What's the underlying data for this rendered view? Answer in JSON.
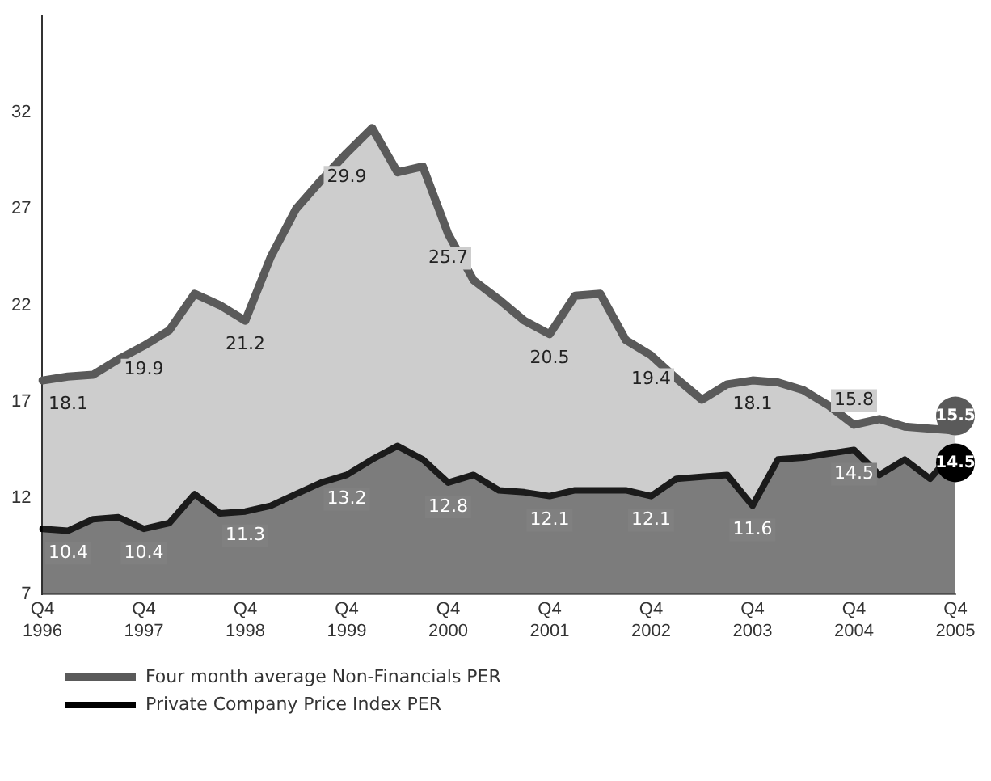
{
  "chart_data": {
    "type": "area",
    "legend": "bottom",
    "grid": false,
    "marker": "none",
    "line_style": "solid",
    "categories": [
      "Q4 1996",
      null,
      null,
      null,
      "Q4 1997",
      null,
      null,
      null,
      "Q4 1998",
      null,
      null,
      null,
      "Q4 1999",
      null,
      null,
      null,
      "Q4 2000",
      null,
      null,
      null,
      "Q4 2001",
      null,
      null,
      null,
      "Q4 2002",
      null,
      null,
      null,
      "Q4 2003",
      null,
      null,
      null,
      "Q4 2004",
      null,
      null,
      null,
      "Q4 2005"
    ],
    "ylim": [
      7,
      37
    ],
    "yticks": [
      7,
      12,
      17,
      22,
      27,
      32
    ],
    "series": [
      {
        "name": "Four month average Non-Financials PER",
        "color": "#5a5a5a",
        "values": [
          18.1,
          18.3,
          18.4,
          19.2,
          19.9,
          20.7,
          22.6,
          22.0,
          21.2,
          24.5,
          27.0,
          28.5,
          29.9,
          31.2,
          28.9,
          29.2,
          25.7,
          23.3,
          22.3,
          21.2,
          20.5,
          22.5,
          22.6,
          20.2,
          19.4,
          18.2,
          17.1,
          17.9,
          18.1,
          18.0,
          17.6,
          16.8,
          15.8,
          16.1,
          15.7,
          15.6,
          15.5
        ],
        "value_labels": [
          "18.1",
          null,
          null,
          null,
          "19.9",
          null,
          null,
          null,
          "21.2",
          null,
          null,
          null,
          "29.9",
          null,
          null,
          null,
          "25.7",
          null,
          null,
          null,
          "20.5",
          null,
          null,
          null,
          "19.4",
          null,
          null,
          null,
          "18.1",
          null,
          null,
          null,
          "15.8",
          null,
          null,
          null,
          "15.5"
        ]
      },
      {
        "name": "Private Company Price Index PER",
        "color": "#000000",
        "values": [
          10.4,
          10.3,
          10.9,
          11.0,
          10.4,
          10.7,
          12.2,
          11.2,
          11.3,
          11.6,
          12.2,
          12.8,
          13.2,
          14.0,
          14.7,
          14.0,
          12.8,
          13.2,
          12.4,
          12.3,
          12.1,
          12.4,
          12.4,
          12.4,
          12.1,
          13.0,
          13.1,
          13.2,
          11.6,
          14.0,
          14.1,
          14.3,
          14.5,
          13.2,
          14.0,
          13.0,
          14.5
        ],
        "value_labels": [
          "10.4",
          null,
          null,
          null,
          "10.4",
          null,
          null,
          null,
          "11.3",
          null,
          null,
          null,
          "13.2",
          null,
          null,
          null,
          "12.8",
          null,
          null,
          null,
          "12.1",
          null,
          null,
          null,
          "12.1",
          null,
          null,
          null,
          "11.6",
          null,
          null,
          null,
          "14.5",
          null,
          null,
          null,
          "14.5"
        ]
      }
    ]
  }
}
